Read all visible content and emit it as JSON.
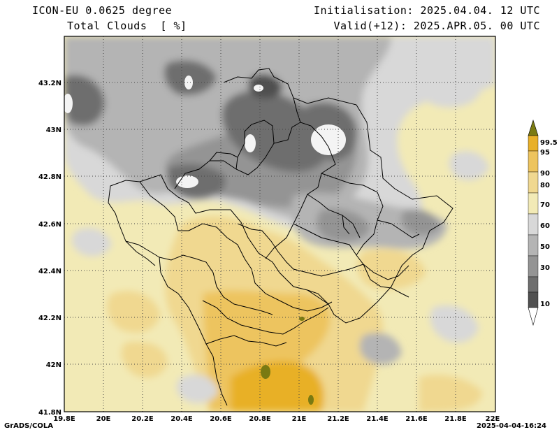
{
  "header": {
    "model": "ICON-EU 0.0625 degree",
    "variable": "Total Clouds  [ %]",
    "init": "Initialisation: 2025.04.04. 12 UTC",
    "valid": "Valid(+12): 2025.APR.05. 00 UTC"
  },
  "axes": {
    "lat_labels": [
      "43.2N",
      "43N",
      "42.8N",
      "42.6N",
      "42.4N",
      "42.2N",
      "42N",
      "41.8N"
    ],
    "lat_values": [
      43.2,
      43.0,
      42.8,
      42.6,
      42.4,
      42.2,
      42.0,
      41.8
    ],
    "lon_labels": [
      "19.8E",
      "20E",
      "20.2E",
      "20.4E",
      "20.6E",
      "20.8E",
      "21E",
      "21.2E",
      "21.4E",
      "21.6E",
      "21.8E",
      "22E"
    ],
    "lon_values": [
      19.8,
      20.0,
      20.2,
      20.4,
      20.6,
      20.8,
      21.0,
      21.2,
      21.4,
      21.6,
      21.8,
      22.0
    ],
    "lat_range": [
      41.8,
      43.4
    ],
    "lon_range": [
      19.8,
      22.0
    ]
  },
  "legend": {
    "labels": [
      "99.5",
      "95",
      "90",
      "80",
      "70",
      "60",
      "50",
      "30",
      "10"
    ],
    "colors": [
      "#7a7a12",
      "#e8b028",
      "#edc45e",
      "#f0d890",
      "#f2eab6",
      "#d8d8d8",
      "#b4b4b4",
      "#949494",
      "#6e6e6e",
      "#505050",
      "#ffffff"
    ]
  },
  "footer": {
    "left": "GrADS/COLA",
    "right": "2025-04-04-16:24"
  }
}
